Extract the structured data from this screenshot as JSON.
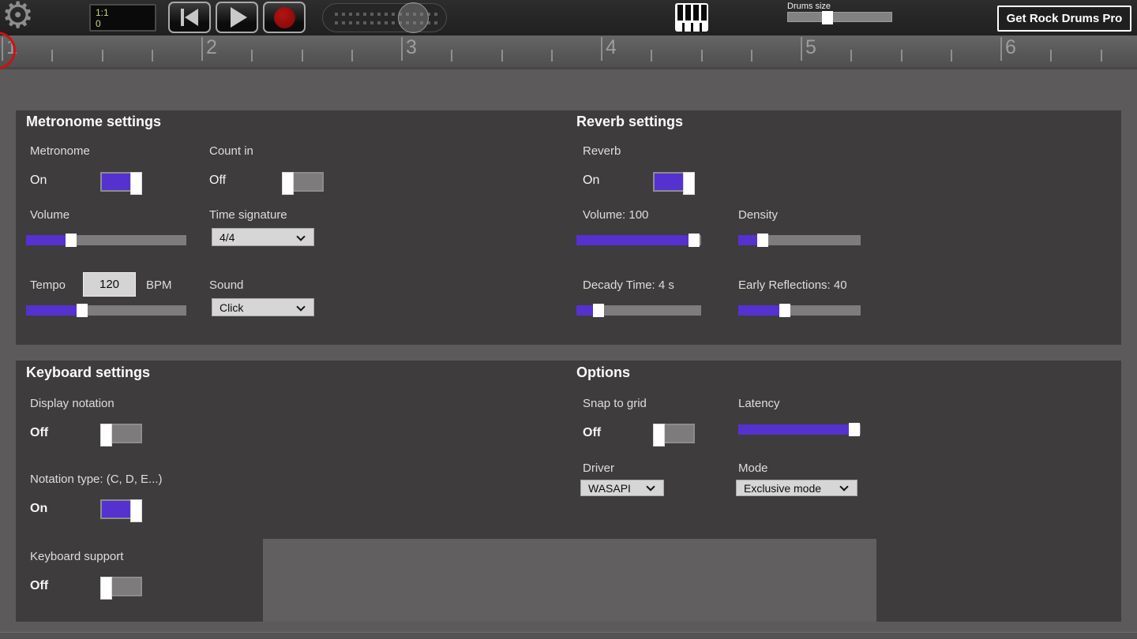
{
  "colors": {
    "accent": "#5531d0",
    "record_red": "#9b0f0f",
    "lcd_text": "#c9d67e",
    "panel_bg": "#3e3c3c",
    "page_bg": "#5c5a5a"
  },
  "toolbar": {
    "lcd": {
      "line1": "1:1",
      "line2": "0"
    },
    "drums_size_label": "Drums size",
    "pro_button_label": "Get Rock Drums Pro"
  },
  "ruler": {
    "numbers": [
      "1",
      "2",
      "3",
      "4",
      "5",
      "6"
    ]
  },
  "panels": {
    "metronome": {
      "title": "Metronome settings",
      "metronome_label": "Metronome",
      "metronome_state": "On",
      "count_in_label": "Count in",
      "count_in_state": "Off",
      "volume_label": "Volume",
      "time_signature_label": "Time signature",
      "time_signature_value": "4/4",
      "tempo_label": "Tempo",
      "tempo_value": "120",
      "bpm_label": "BPM",
      "sound_label": "Sound",
      "sound_value": "Click"
    },
    "reverb": {
      "title": "Reverb settings",
      "reverb_label": "Reverb",
      "reverb_state": "On",
      "volume_label": "Volume: 100",
      "density_label": "Density",
      "decay_label": "Decady Time: 4 s",
      "early_label": "Early Reflections: 40"
    },
    "keyboard": {
      "title": "Keyboard settings",
      "display_notation_label": "Display notation",
      "display_notation_state": "Off",
      "notation_type_label": "Notation type: (C, D, E...)",
      "notation_type_state": "On",
      "keyboard_support_label": "Keyboard support",
      "keyboard_support_state": "Off"
    },
    "options": {
      "title": "Options",
      "snap_label": "Snap to grid",
      "snap_state": "Off",
      "latency_label": "Latency",
      "driver_label": "Driver",
      "driver_value": "WASAPI",
      "mode_label": "Mode",
      "mode_value": "Exclusive mode"
    }
  },
  "slider_values": {
    "metronome_volume": 28,
    "tempo": 35,
    "reverb_volume": 94,
    "density": 20,
    "decay": 18,
    "early_reflections": 38,
    "latency": 95,
    "drums_size": 38
  }
}
